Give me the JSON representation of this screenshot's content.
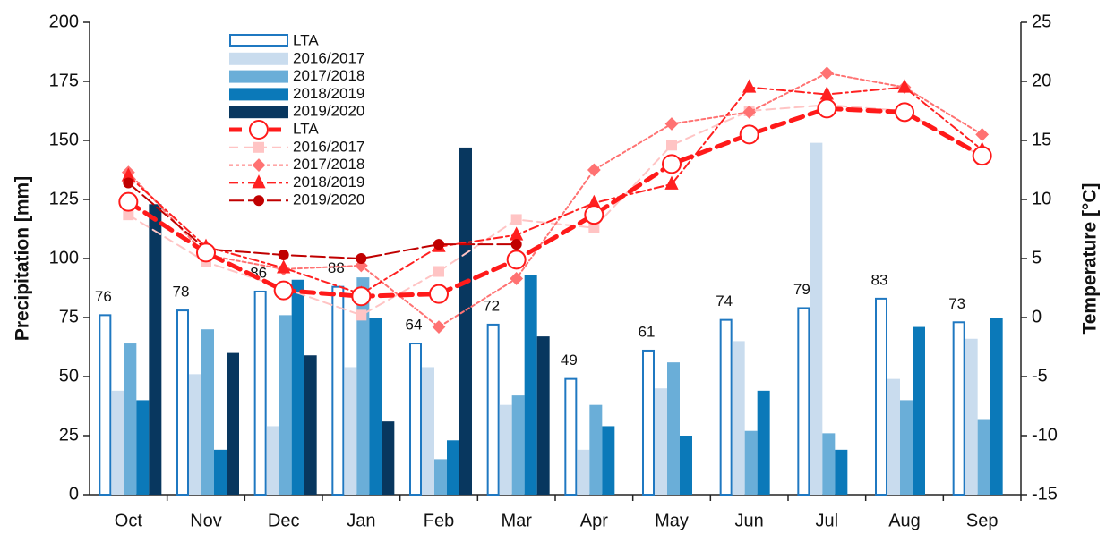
{
  "chart_data": {
    "type": "combo",
    "y_label": "Precipitation [mm]",
    "y2_label": "Temperature [°C]",
    "categories": [
      "Oct",
      "Nov",
      "Dec",
      "Jan",
      "Feb",
      "Mar",
      "Apr",
      "May",
      "Jun",
      "Jul",
      "Aug",
      "Sep"
    ],
    "ylim": [
      0,
      200
    ],
    "yticks": [
      0,
      25,
      50,
      75,
      100,
      125,
      150,
      175,
      200
    ],
    "y2lim": [
      -15,
      25
    ],
    "y2ticks": [
      -15,
      -10,
      -5,
      0,
      5,
      10,
      15,
      20,
      25
    ],
    "series": [
      {
        "name": "LTA",
        "kind": "bar",
        "color": "#1f78c1",
        "hollow": true,
        "show_values": true,
        "values": [
          76,
          78,
          86,
          88,
          64,
          72,
          49,
          61,
          74,
          79,
          83,
          73
        ]
      },
      {
        "name": "2016/2017",
        "kind": "bar",
        "color": "#c9dcee",
        "values": [
          44,
          51,
          29,
          54,
          54,
          38,
          19,
          45,
          65,
          149,
          49,
          66
        ]
      },
      {
        "name": "2017/2018",
        "kind": "bar",
        "color": "#6aaed8",
        "values": [
          64,
          70,
          76,
          92,
          15,
          42,
          38,
          56,
          27,
          26,
          40,
          32
        ]
      },
      {
        "name": "2018/2019",
        "kind": "bar",
        "color": "#0b79b9",
        "values": [
          40,
          19,
          91,
          75,
          23,
          93,
          29,
          25,
          44,
          19,
          71,
          75
        ]
      },
      {
        "name": "2019/2020",
        "kind": "bar",
        "color": "#08375f",
        "values": [
          123,
          60,
          59,
          31,
          147,
          67,
          null,
          null,
          null,
          null,
          null,
          null
        ]
      },
      {
        "name": "LTA",
        "kind": "line",
        "axis": "y2",
        "color": "#ff1a1a",
        "dash": "14 8",
        "width": 5,
        "marker": "circle",
        "marker_fill": "#ffffff",
        "values": [
          9.8,
          5.5,
          2.3,
          1.8,
          2.0,
          4.9,
          8.7,
          13.0,
          15.5,
          17.7,
          17.4,
          13.7
        ]
      },
      {
        "name": "2016/2017",
        "kind": "line",
        "axis": "y2",
        "color": "#ffc4c4",
        "dash": "10 6",
        "width": 2,
        "marker": "square",
        "values": [
          8.7,
          4.7,
          2.5,
          0.2,
          3.9,
          8.3,
          7.6,
          14.6,
          17.5,
          18.0,
          17.5,
          13.6
        ]
      },
      {
        "name": "2017/2018",
        "kind": "line",
        "axis": "y2",
        "color": "#ff7272",
        "dash": "4 3",
        "width": 2,
        "marker": "diamond",
        "values": [
          12.3,
          5.3,
          4.1,
          4.4,
          -0.8,
          3.3,
          12.5,
          16.4,
          17.4,
          20.7,
          19.5,
          15.5
        ]
      },
      {
        "name": "2018/2019",
        "kind": "line",
        "axis": "y2",
        "color": "#ff2020",
        "dash": "10 4 3 4",
        "width": 2,
        "marker": "triangle",
        "values": [
          12.0,
          6.0,
          4.2,
          2.0,
          6.0,
          7.0,
          9.7,
          11.3,
          19.5,
          18.9,
          19.5,
          14.2
        ]
      },
      {
        "name": "2019/2020",
        "kind": "line",
        "axis": "y2",
        "color": "#c00000",
        "dash": "16 5",
        "width": 2,
        "marker": "dot",
        "values": [
          11.4,
          5.8,
          5.3,
          5.0,
          6.2,
          6.2,
          null,
          null,
          null,
          null,
          null,
          null
        ]
      }
    ]
  }
}
